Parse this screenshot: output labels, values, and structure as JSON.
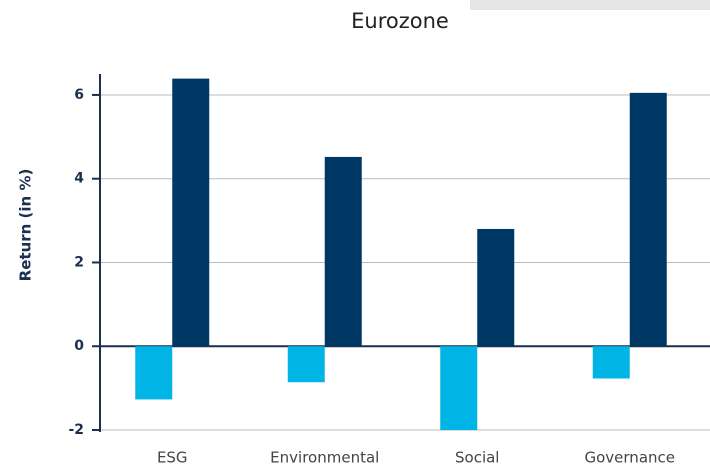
{
  "chart_data": {
    "type": "bar",
    "title": "Eurozone",
    "y_label": "Return (in %)",
    "categories": [
      "ESG",
      "Environmental",
      "Social",
      "Governance"
    ],
    "series": [
      {
        "color": "#00b4e6",
        "values": [
          -1.27,
          -0.86,
          -2.0,
          -0.77
        ]
      },
      {
        "color": "#003865",
        "values": [
          6.39,
          4.52,
          2.8,
          6.05
        ]
      }
    ],
    "ylim": [
      -2,
      6.5
    ],
    "yticks": [
      -2,
      0,
      2,
      4,
      6
    ],
    "grid": true
  }
}
